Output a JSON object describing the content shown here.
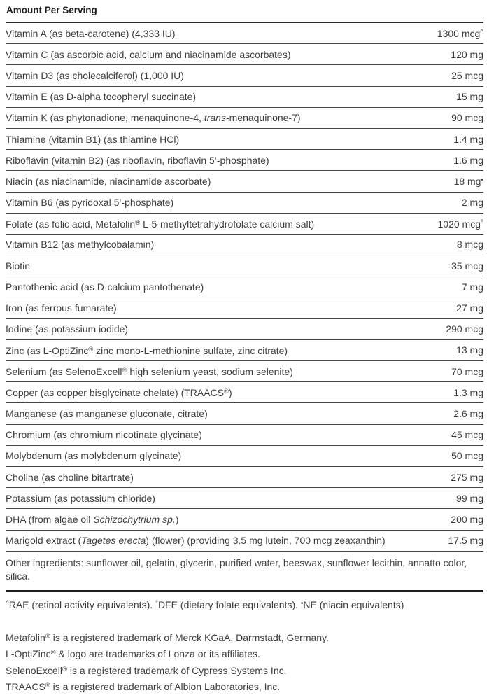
{
  "header": {
    "title": "Amount Per Serving"
  },
  "table": {
    "rows": [
      {
        "label": [
          {
            "t": "Vitamin A (as beta-carotene) (4,333 IU)"
          }
        ],
        "amount": "1300 mcg",
        "marker": "^"
      },
      {
        "label": [
          {
            "t": "Vitamin C (as ascorbic acid, calcium and niacinamide ascorbates)"
          }
        ],
        "amount": "120 mg",
        "marker": ""
      },
      {
        "label": [
          {
            "t": "Vitamin D3 (as cholecalciferol) (1,000 IU)"
          }
        ],
        "amount": "25 mcg",
        "marker": ""
      },
      {
        "label": [
          {
            "t": "Vitamin E (as D-alpha tocopheryl succinate)"
          }
        ],
        "amount": "15 mg",
        "marker": ""
      },
      {
        "label": [
          {
            "t": "Vitamin K (as phytonadione, menaquinone-4, "
          },
          {
            "t": "trans",
            "s": "it"
          },
          {
            "t": "-menaquinone-7)"
          }
        ],
        "amount": "90 mcg",
        "marker": ""
      },
      {
        "label": [
          {
            "t": "Thiamine (vitamin B1) (as thiamine HCl)"
          }
        ],
        "amount": "1.4 mg",
        "marker": ""
      },
      {
        "label": [
          {
            "t": "Riboflavin (vitamin B2) (as riboflavin, riboflavin 5’-phosphate)"
          }
        ],
        "amount": "1.6 mg",
        "marker": ""
      },
      {
        "label": [
          {
            "t": "Niacin (as niacinamide, niacinamide ascorbate)"
          }
        ],
        "amount": "18 mg",
        "marker": "•"
      },
      {
        "label": [
          {
            "t": "Vitamin B6 (as pyridoxal 5’-phosphate)"
          }
        ],
        "amount": "2 mg",
        "marker": ""
      },
      {
        "label": [
          {
            "t": "Folate (as folic acid, Metafolin"
          },
          {
            "t": "®",
            "s": "sup"
          },
          {
            "t": " L-5-methyltetrahydrofolate calcium salt)"
          }
        ],
        "amount": "1020 mcg",
        "marker": "°"
      },
      {
        "label": [
          {
            "t": "Vitamin B12 (as methylcobalamin)"
          }
        ],
        "amount": "8 mcg",
        "marker": ""
      },
      {
        "label": [
          {
            "t": "Biotin"
          }
        ],
        "amount": "35 mcg",
        "marker": ""
      },
      {
        "label": [
          {
            "t": "Pantothenic acid (as D-calcium pantothenate)"
          }
        ],
        "amount": "7 mg",
        "marker": ""
      },
      {
        "label": [
          {
            "t": "Iron (as ferrous fumarate)"
          }
        ],
        "amount": "27 mg",
        "marker": ""
      },
      {
        "label": [
          {
            "t": "Iodine (as potassium iodide)"
          }
        ],
        "amount": "290 mcg",
        "marker": ""
      },
      {
        "label": [
          {
            "t": "Zinc (as L-OptiZinc"
          },
          {
            "t": "®",
            "s": "sup"
          },
          {
            "t": " zinc mono-L-methionine sulfate, zinc citrate)"
          }
        ],
        "amount": "13 mg",
        "marker": ""
      },
      {
        "label": [
          {
            "t": "Selenium (as SelenoExcell"
          },
          {
            "t": "®",
            "s": "sup"
          },
          {
            "t": " high selenium yeast, sodium selenite)"
          }
        ],
        "amount": "70 mcg",
        "marker": ""
      },
      {
        "label": [
          {
            "t": "Copper (as copper bisglycinate chelate) (TRAACS"
          },
          {
            "t": "®",
            "s": "sup"
          },
          {
            "t": ")"
          }
        ],
        "amount": "1.3 mg",
        "marker": ""
      },
      {
        "label": [
          {
            "t": "Manganese (as manganese gluconate, citrate)"
          }
        ],
        "amount": "2.6 mg",
        "marker": ""
      },
      {
        "label": [
          {
            "t": "Chromium (as chromium nicotinate glycinate)"
          }
        ],
        "amount": "45 mcg",
        "marker": ""
      },
      {
        "label": [
          {
            "t": "Molybdenum (as molybdenum glycinate)"
          }
        ],
        "amount": "50 mcg",
        "marker": ""
      },
      {
        "label": [
          {
            "t": "Choline (as choline bitartrate)"
          }
        ],
        "amount": "275 mg",
        "marker": ""
      },
      {
        "label": [
          {
            "t": "Potassium (as potassium chloride)"
          }
        ],
        "amount": "99 mg",
        "marker": ""
      },
      {
        "label": [
          {
            "t": "DHA (from algae oil "
          },
          {
            "t": "Schizochytrium sp.",
            "s": "it"
          },
          {
            "t": ")"
          }
        ],
        "amount": "200 mg",
        "marker": ""
      },
      {
        "label": [
          {
            "t": "Marigold extract ("
          },
          {
            "t": "Tagetes erecta",
            "s": "it"
          },
          {
            "t": ") (flower) (providing 3.5 mg lutein, 700 mcg zeaxanthin)"
          }
        ],
        "amount": "17.5 mg",
        "marker": ""
      }
    ]
  },
  "other_ingredients": [
    {
      "t": "Other ingredients: sunflower oil, gelatin, glycerin, purified water, beeswax, sunflower lecithin, annatto color, silica."
    }
  ],
  "footnotes": [
    {
      "t": "^",
      "s": "mk"
    },
    {
      "t": "RAE (retinol activity equivalents). "
    },
    {
      "t": "°",
      "s": "mk"
    },
    {
      "t": "DFE (dietary folate equivalents). "
    },
    {
      "t": "•",
      "s": "mk"
    },
    {
      "t": "NE (niacin equivalents)"
    }
  ],
  "trademarks": [
    [
      {
        "t": "Metafolin"
      },
      {
        "t": "®",
        "s": "sup"
      },
      {
        "t": " is a registered trademark of Merck KGaA, Darmstadt, Germany."
      }
    ],
    [
      {
        "t": "L-OptiZinc"
      },
      {
        "t": "®",
        "s": "sup"
      },
      {
        "t": " & logo are trademarks of Lonza or its affiliates."
      }
    ],
    [
      {
        "t": "SelenoExcell"
      },
      {
        "t": "®",
        "s": "sup"
      },
      {
        "t": " is a registered trademark of Cypress Systems Inc."
      }
    ],
    [
      {
        "t": "TRAACS"
      },
      {
        "t": "®",
        "s": "sup"
      },
      {
        "t": " is a registered trademark of Albion Laboratories, Inc."
      }
    ]
  ]
}
